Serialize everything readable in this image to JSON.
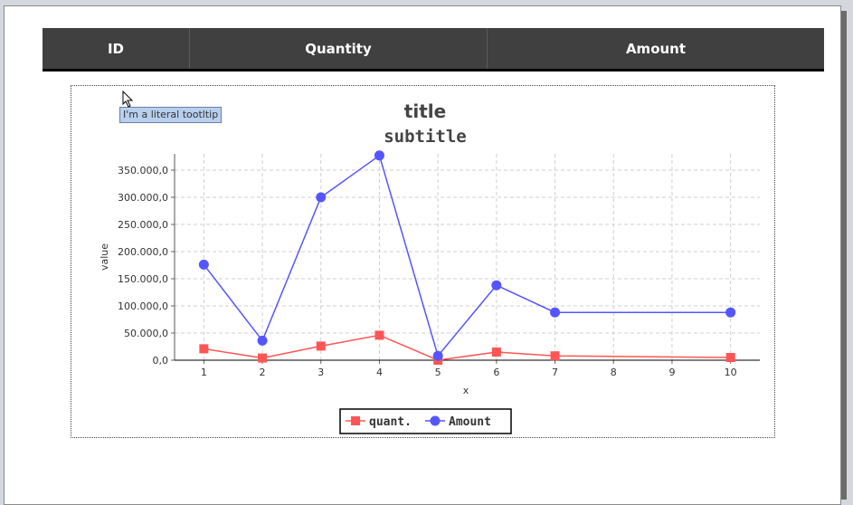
{
  "table": {
    "columns": [
      "ID",
      "Quantity",
      "Amount"
    ]
  },
  "tooltip": "I'm a literal tootltip",
  "colors": {
    "quant": "#ff5555",
    "amount": "#5555ff",
    "header_bg": "#404040"
  },
  "chart_data": {
    "type": "line",
    "title": "title",
    "subtitle": "subtitle",
    "xlabel": "x",
    "ylabel": "value",
    "x": [
      1,
      2,
      3,
      4,
      5,
      6,
      7,
      8,
      9,
      10
    ],
    "xticks": [
      "1",
      "2",
      "3",
      "4",
      "5",
      "6",
      "7",
      "8",
      "9",
      "10"
    ],
    "ylim": [
      0,
      380000
    ],
    "yticks": [
      "0,0",
      "50.000,0",
      "100.000,0",
      "150.000,0",
      "200.000,0",
      "250.000,0",
      "300.000,0",
      "350.000,0"
    ],
    "ytick_values": [
      0,
      50000,
      100000,
      150000,
      200000,
      250000,
      300000,
      350000
    ],
    "grid": true,
    "legend": "bottom",
    "series": [
      {
        "name": "quant.",
        "marker": "square",
        "color": "#ff5555",
        "points": [
          [
            1,
            21000
          ],
          [
            2,
            4000
          ],
          [
            3,
            26000
          ],
          [
            4,
            46000
          ],
          [
            5,
            0
          ],
          [
            6,
            15000
          ],
          [
            7,
            8000
          ],
          [
            10,
            5000
          ]
        ]
      },
      {
        "name": "Amount",
        "marker": "circle",
        "color": "#5555ff",
        "points": [
          [
            1,
            176000
          ],
          [
            2,
            36000
          ],
          [
            3,
            300000
          ],
          [
            4,
            377000
          ],
          [
            5,
            8000
          ],
          [
            6,
            138000
          ],
          [
            7,
            88000
          ],
          [
            10,
            88000
          ]
        ]
      }
    ]
  }
}
